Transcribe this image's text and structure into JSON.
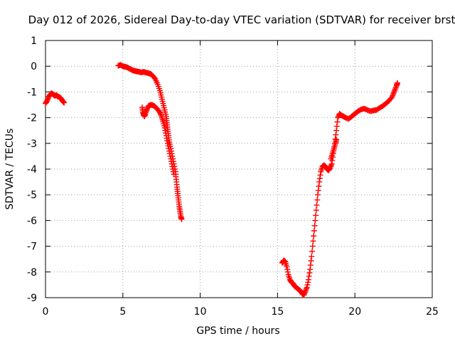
{
  "chart_data": {
    "type": "scatter",
    "title": "Day 012 of 2026, Sidereal Day-to-day VTEC variation (SDTVAR) for receiver brst",
    "xlabel": "GPS time / hours",
    "ylabel": "SDTVAR / TECUs",
    "xlim": [
      0,
      25
    ],
    "ylim": [
      -9,
      1
    ],
    "xticks": [
      "0",
      "5",
      "10",
      "15",
      "20",
      "25"
    ],
    "yticks": [
      "1",
      "0",
      "-1",
      "-2",
      "-3",
      "-4",
      "-5",
      "-6",
      "-7",
      "-8",
      "-9"
    ],
    "grid": true,
    "marker": "plus",
    "color": "#ff0000",
    "segments": [
      {
        "points": [
          [
            0.0,
            -1.45
          ],
          [
            0.1,
            -1.35
          ],
          [
            0.2,
            -1.2
          ],
          [
            0.3,
            -1.1
          ],
          [
            0.4,
            -1.05
          ],
          [
            0.5,
            -1.1
          ],
          [
            0.6,
            -1.15
          ],
          [
            0.7,
            -1.12
          ],
          [
            0.8,
            -1.18
          ],
          [
            0.9,
            -1.2
          ],
          [
            1.0,
            -1.25
          ],
          [
            1.1,
            -1.35
          ],
          [
            1.2,
            -1.42
          ]
        ]
      },
      {
        "points": [
          [
            4.7,
            0.02
          ],
          [
            4.85,
            0.05
          ],
          [
            5.0,
            0.0
          ],
          [
            5.15,
            -0.02
          ],
          [
            5.3,
            -0.05
          ],
          [
            5.45,
            -0.1
          ],
          [
            5.6,
            -0.15
          ],
          [
            5.75,
            -0.18
          ],
          [
            5.9,
            -0.2
          ],
          [
            6.05,
            -0.22
          ],
          [
            6.2,
            -0.24
          ],
          [
            6.35,
            -0.22
          ],
          [
            6.5,
            -0.25
          ],
          [
            6.65,
            -0.27
          ],
          [
            6.8,
            -0.3
          ],
          [
            6.95,
            -0.38
          ],
          [
            7.1,
            -0.5
          ],
          [
            7.25,
            -0.7
          ],
          [
            7.4,
            -0.95
          ],
          [
            7.5,
            -1.2
          ],
          [
            7.6,
            -1.45
          ],
          [
            7.7,
            -1.7
          ],
          [
            7.8,
            -1.95
          ],
          [
            7.85,
            -2.2
          ],
          [
            7.9,
            -2.45
          ],
          [
            7.95,
            -2.7
          ],
          [
            8.0,
            -2.95
          ],
          [
            8.1,
            -3.2
          ],
          [
            8.2,
            -3.5
          ],
          [
            8.3,
            -3.8
          ],
          [
            8.4,
            -4.1
          ],
          [
            8.45,
            -4.4
          ],
          [
            8.5,
            -4.7
          ],
          [
            8.55,
            -4.95
          ],
          [
            8.6,
            -5.2
          ],
          [
            8.65,
            -5.45
          ],
          [
            8.7,
            -5.65
          ],
          [
            8.75,
            -5.85
          ],
          [
            8.8,
            -5.95
          ]
        ]
      },
      {
        "points": [
          [
            6.25,
            -1.6
          ],
          [
            6.3,
            -1.8
          ],
          [
            6.35,
            -1.9
          ],
          [
            6.4,
            -1.95
          ],
          [
            6.45,
            -1.85
          ],
          [
            6.55,
            -1.7
          ],
          [
            6.65,
            -1.55
          ],
          [
            6.8,
            -1.5
          ],
          [
            6.95,
            -1.52
          ],
          [
            7.1,
            -1.58
          ],
          [
            7.25,
            -1.68
          ],
          [
            7.4,
            -1.8
          ],
          [
            7.5,
            -1.95
          ],
          [
            7.6,
            -2.15
          ],
          [
            7.7,
            -2.4
          ],
          [
            7.8,
            -2.7
          ],
          [
            7.9,
            -3.0
          ],
          [
            8.0,
            -3.3
          ],
          [
            8.1,
            -3.6
          ],
          [
            8.2,
            -3.9
          ],
          [
            8.3,
            -4.2
          ]
        ]
      },
      {
        "points": [
          [
            15.3,
            -7.65
          ],
          [
            15.4,
            -7.55
          ],
          [
            15.5,
            -7.6
          ],
          [
            15.6,
            -7.8
          ],
          [
            15.7,
            -8.1
          ],
          [
            15.8,
            -8.3
          ],
          [
            15.9,
            -8.4
          ],
          [
            16.0,
            -8.45
          ],
          [
            16.1,
            -8.55
          ],
          [
            16.2,
            -8.6
          ],
          [
            16.3,
            -8.65
          ],
          [
            16.4,
            -8.7
          ],
          [
            16.5,
            -8.75
          ],
          [
            16.6,
            -8.85
          ],
          [
            16.7,
            -8.9
          ],
          [
            16.8,
            -8.75
          ],
          [
            16.9,
            -8.6
          ],
          [
            17.0,
            -8.3
          ],
          [
            17.1,
            -7.9
          ],
          [
            17.2,
            -7.4
          ],
          [
            17.3,
            -6.8
          ],
          [
            17.4,
            -6.2
          ],
          [
            17.5,
            -5.6
          ],
          [
            17.6,
            -5.0
          ],
          [
            17.7,
            -4.5
          ],
          [
            17.8,
            -4.1
          ],
          [
            17.9,
            -3.9
          ],
          [
            18.0,
            -3.85
          ],
          [
            18.1,
            -3.9
          ],
          [
            18.2,
            -4.0
          ],
          [
            18.3,
            -4.05
          ],
          [
            18.4,
            -3.95
          ],
          [
            18.5,
            -3.8
          ],
          [
            18.6,
            -3.4
          ],
          [
            18.7,
            -3.0
          ],
          [
            18.8,
            -2.5
          ],
          [
            18.9,
            -2.0
          ],
          [
            19.0,
            -1.85
          ],
          [
            19.1,
            -1.9
          ],
          [
            19.25,
            -1.95
          ],
          [
            19.4,
            -2.0
          ],
          [
            19.6,
            -2.05
          ],
          [
            19.8,
            -1.95
          ],
          [
            20.0,
            -1.85
          ],
          [
            20.2,
            -1.75
          ],
          [
            20.4,
            -1.68
          ],
          [
            20.6,
            -1.65
          ],
          [
            20.8,
            -1.7
          ],
          [
            21.0,
            -1.75
          ],
          [
            21.2,
            -1.72
          ],
          [
            21.4,
            -1.7
          ],
          [
            21.6,
            -1.62
          ],
          [
            21.8,
            -1.55
          ],
          [
            22.0,
            -1.45
          ],
          [
            22.2,
            -1.35
          ],
          [
            22.4,
            -1.2
          ],
          [
            22.5,
            -1.05
          ],
          [
            22.6,
            -0.9
          ],
          [
            22.7,
            -0.75
          ],
          [
            22.75,
            -0.65
          ]
        ]
      },
      {
        "points": [
          [
            18.45,
            -3.6
          ],
          [
            18.55,
            -3.4
          ],
          [
            18.65,
            -3.2
          ],
          [
            18.75,
            -3.0
          ],
          [
            18.8,
            -2.85
          ]
        ]
      }
    ]
  }
}
